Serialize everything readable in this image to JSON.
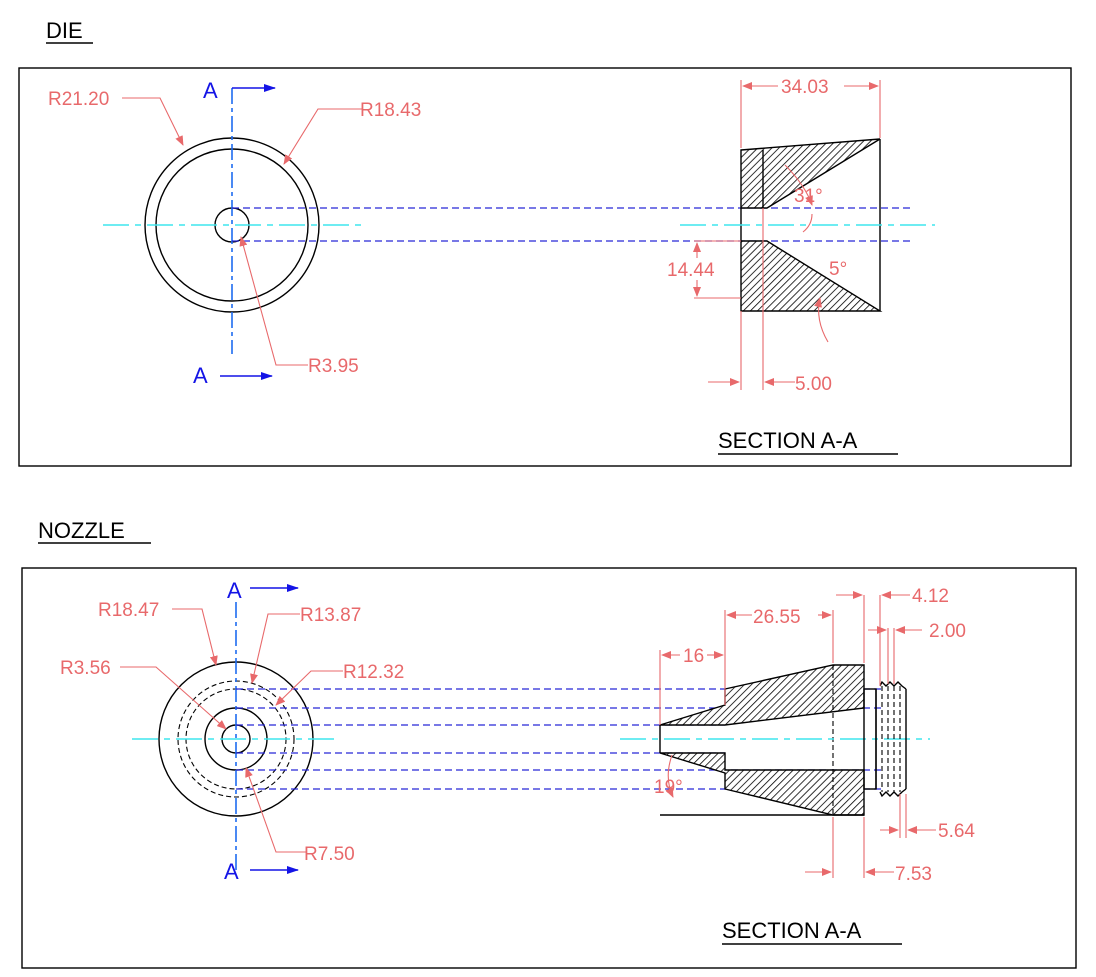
{
  "die": {
    "title": "DIE",
    "section_label": "SECTION A-A",
    "cut_label": "A",
    "dims": {
      "r_outer": "R21.20",
      "r_inner": "R18.43",
      "r_bore": "R3.95",
      "width": "34.03",
      "angle_top": "31°",
      "angle_bottom": "5°",
      "height": "14.44",
      "land": "5.00"
    }
  },
  "nozzle": {
    "title": "NOZZLE",
    "section_label": "SECTION A-A",
    "cut_label": "A",
    "dims": {
      "r_outer": "R18.47",
      "r_a": "R13.87",
      "r_b": "R12.32",
      "r_bore": "R3.56",
      "r_c": "R7.50",
      "length": "26.55",
      "entry": "16",
      "angle": "19°",
      "thread_outer": "4.12",
      "thread_pitch": "2.00",
      "thread_depth": "5.64",
      "shoulder": "7.53"
    }
  },
  "colors": {
    "outline": "#000000",
    "dimension": "#e8696b",
    "centerline": "#3ee6ee",
    "hidden": "#2828d8",
    "cutting_plane": "#1414e6"
  }
}
